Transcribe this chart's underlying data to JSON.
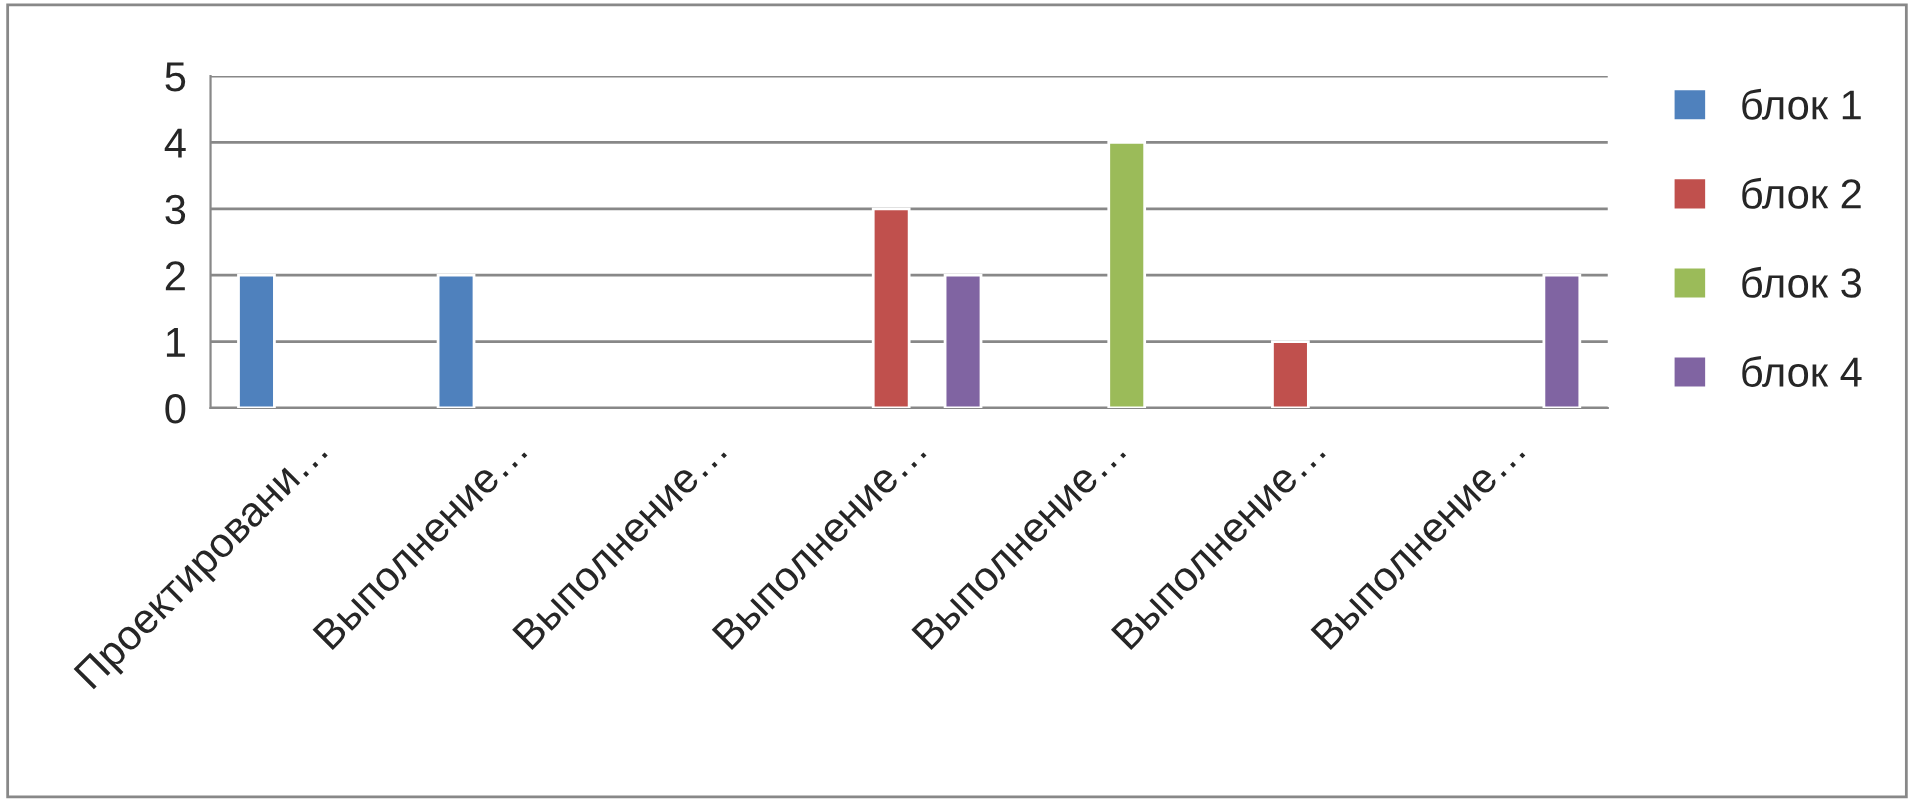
{
  "chart_data": {
    "type": "bar",
    "categories": [
      "Проектировани…",
      "Выполнение…",
      "Выполнение…",
      "Выполнение…",
      "Выполнение…",
      "Выполнение…",
      "Выполнение…"
    ],
    "series": [
      {
        "name": "блок 1",
        "color": "#4f81bd",
        "values": [
          2,
          2,
          null,
          null,
          null,
          null,
          null
        ]
      },
      {
        "name": "блок 2",
        "color": "#c0504d",
        "values": [
          null,
          null,
          null,
          3,
          null,
          1,
          null
        ]
      },
      {
        "name": "блок 3",
        "color": "#9bbb59",
        "values": [
          null,
          null,
          null,
          null,
          4,
          null,
          null
        ]
      },
      {
        "name": "блок 4",
        "color": "#8064a2",
        "values": [
          null,
          null,
          null,
          2,
          null,
          null,
          2
        ]
      }
    ],
    "ylim": [
      0,
      5
    ],
    "yticks": [
      0,
      1,
      2,
      3,
      4,
      5
    ],
    "grid": "y",
    "legend": "right"
  }
}
